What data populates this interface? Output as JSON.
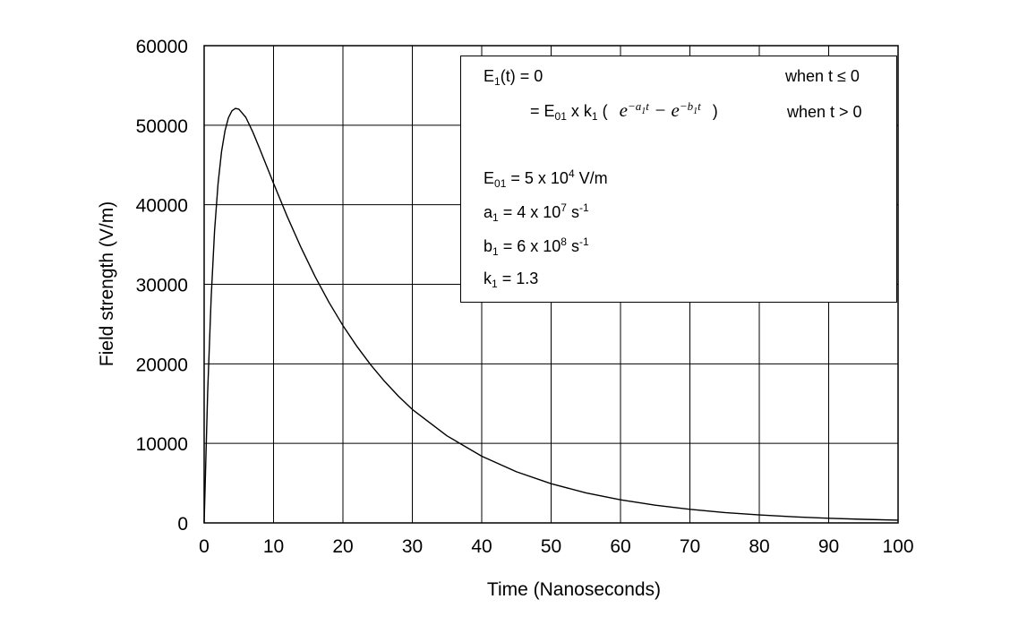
{
  "chart_data": {
    "type": "line",
    "xlabel": "Time (Nanoseconds)",
    "ylabel": "Field strength (V/m)",
    "xlim": [
      0,
      100
    ],
    "ylim": [
      0,
      60000
    ],
    "xticks": [
      0,
      10,
      20,
      30,
      40,
      50,
      60,
      70,
      80,
      90,
      100
    ],
    "yticks": [
      0,
      10000,
      20000,
      30000,
      40000,
      50000,
      60000
    ],
    "xtick_labels": [
      "0",
      "10",
      "20",
      "30",
      "40",
      "50",
      "60",
      "70",
      "80",
      "90",
      "100"
    ],
    "ytick_labels": [
      "0",
      "10000",
      "20000",
      "30000",
      "40000",
      "50000",
      "60000"
    ],
    "grid": true,
    "series": [
      {
        "x": [
          0,
          0.5,
          1,
          1.5,
          2,
          2.5,
          3,
          3.5,
          4,
          4.5,
          5,
          6,
          7,
          8,
          9,
          10,
          12,
          14,
          16,
          18,
          20,
          22,
          24,
          26,
          28,
          30,
          35,
          40,
          45,
          50,
          55,
          60,
          65,
          70,
          75,
          80,
          85,
          90,
          95,
          100
        ],
        "values": [
          0,
          16360,
          28210,
          36680,
          42610,
          46660,
          49310,
          50930,
          51800,
          52110,
          52020,
          50990,
          49160,
          47050,
          44860,
          42690,
          38470,
          34550,
          30950,
          27720,
          24810,
          22210,
          19880,
          17800,
          15930,
          14260,
          10940,
          8390,
          6430,
          4930,
          3780,
          2900,
          2230,
          1710,
          1310,
          1000,
          770,
          590,
          450,
          350
        ]
      }
    ],
    "legend_position": "top-right",
    "annotation": {
      "line1_lhs": "E",
      "line1_lhs_sub": "1",
      "line1_lhs_rest": "(t) = 0",
      "line1_cond": "when t ≤ 0",
      "line2_prefix": "= E",
      "line2_prefix_sub": "01",
      "line2_mid": " x k",
      "line2_mid_sub": "1",
      "line2_open": " (",
      "line2_close": ")",
      "line2_cond": "when t > 0",
      "e01_label": "E",
      "e01_sub": "01",
      "e01_value": " = 5 x 10",
      "e01_exp": "4",
      "e01_unit": " V/m",
      "a1_label": "a",
      "a1_sub": "1",
      "a1_value": " = 4 x 10",
      "a1_exp": "7",
      "a1_unit": " s",
      "a1_unit_exp": "-1",
      "b1_label": "b",
      "b1_sub": "1",
      "b1_value": " = 6 x 10",
      "b1_exp": "8",
      "b1_unit": " s",
      "b1_unit_exp": "-1",
      "k1_label": "k",
      "k1_sub": "1",
      "k1_value": " = 1.3"
    }
  }
}
